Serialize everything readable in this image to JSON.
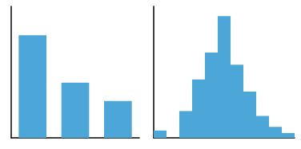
{
  "chart_data": [
    {
      "type": "bar",
      "categories": [
        null,
        null,
        null
      ],
      "values": [
        0.78,
        0.42,
        0.28
      ],
      "color": "#4da6d8",
      "ylim": [
        0,
        1.0
      ],
      "grid": false,
      "tick_labels": false
    },
    {
      "type": "histogram",
      "bins": [
        0,
        1,
        2,
        3,
        4,
        5,
        6,
        7,
        8,
        9,
        10,
        11
      ],
      "values": [
        0.06,
        0.0,
        0.22,
        0.48,
        0.7,
        1.0,
        0.6,
        0.38,
        0.18,
        0.09,
        0.04
      ],
      "color": "#4da6d8",
      "xlim": [
        0,
        11
      ],
      "ylim": [
        0,
        1.08
      ],
      "grid": false,
      "tick_labels": false
    }
  ]
}
